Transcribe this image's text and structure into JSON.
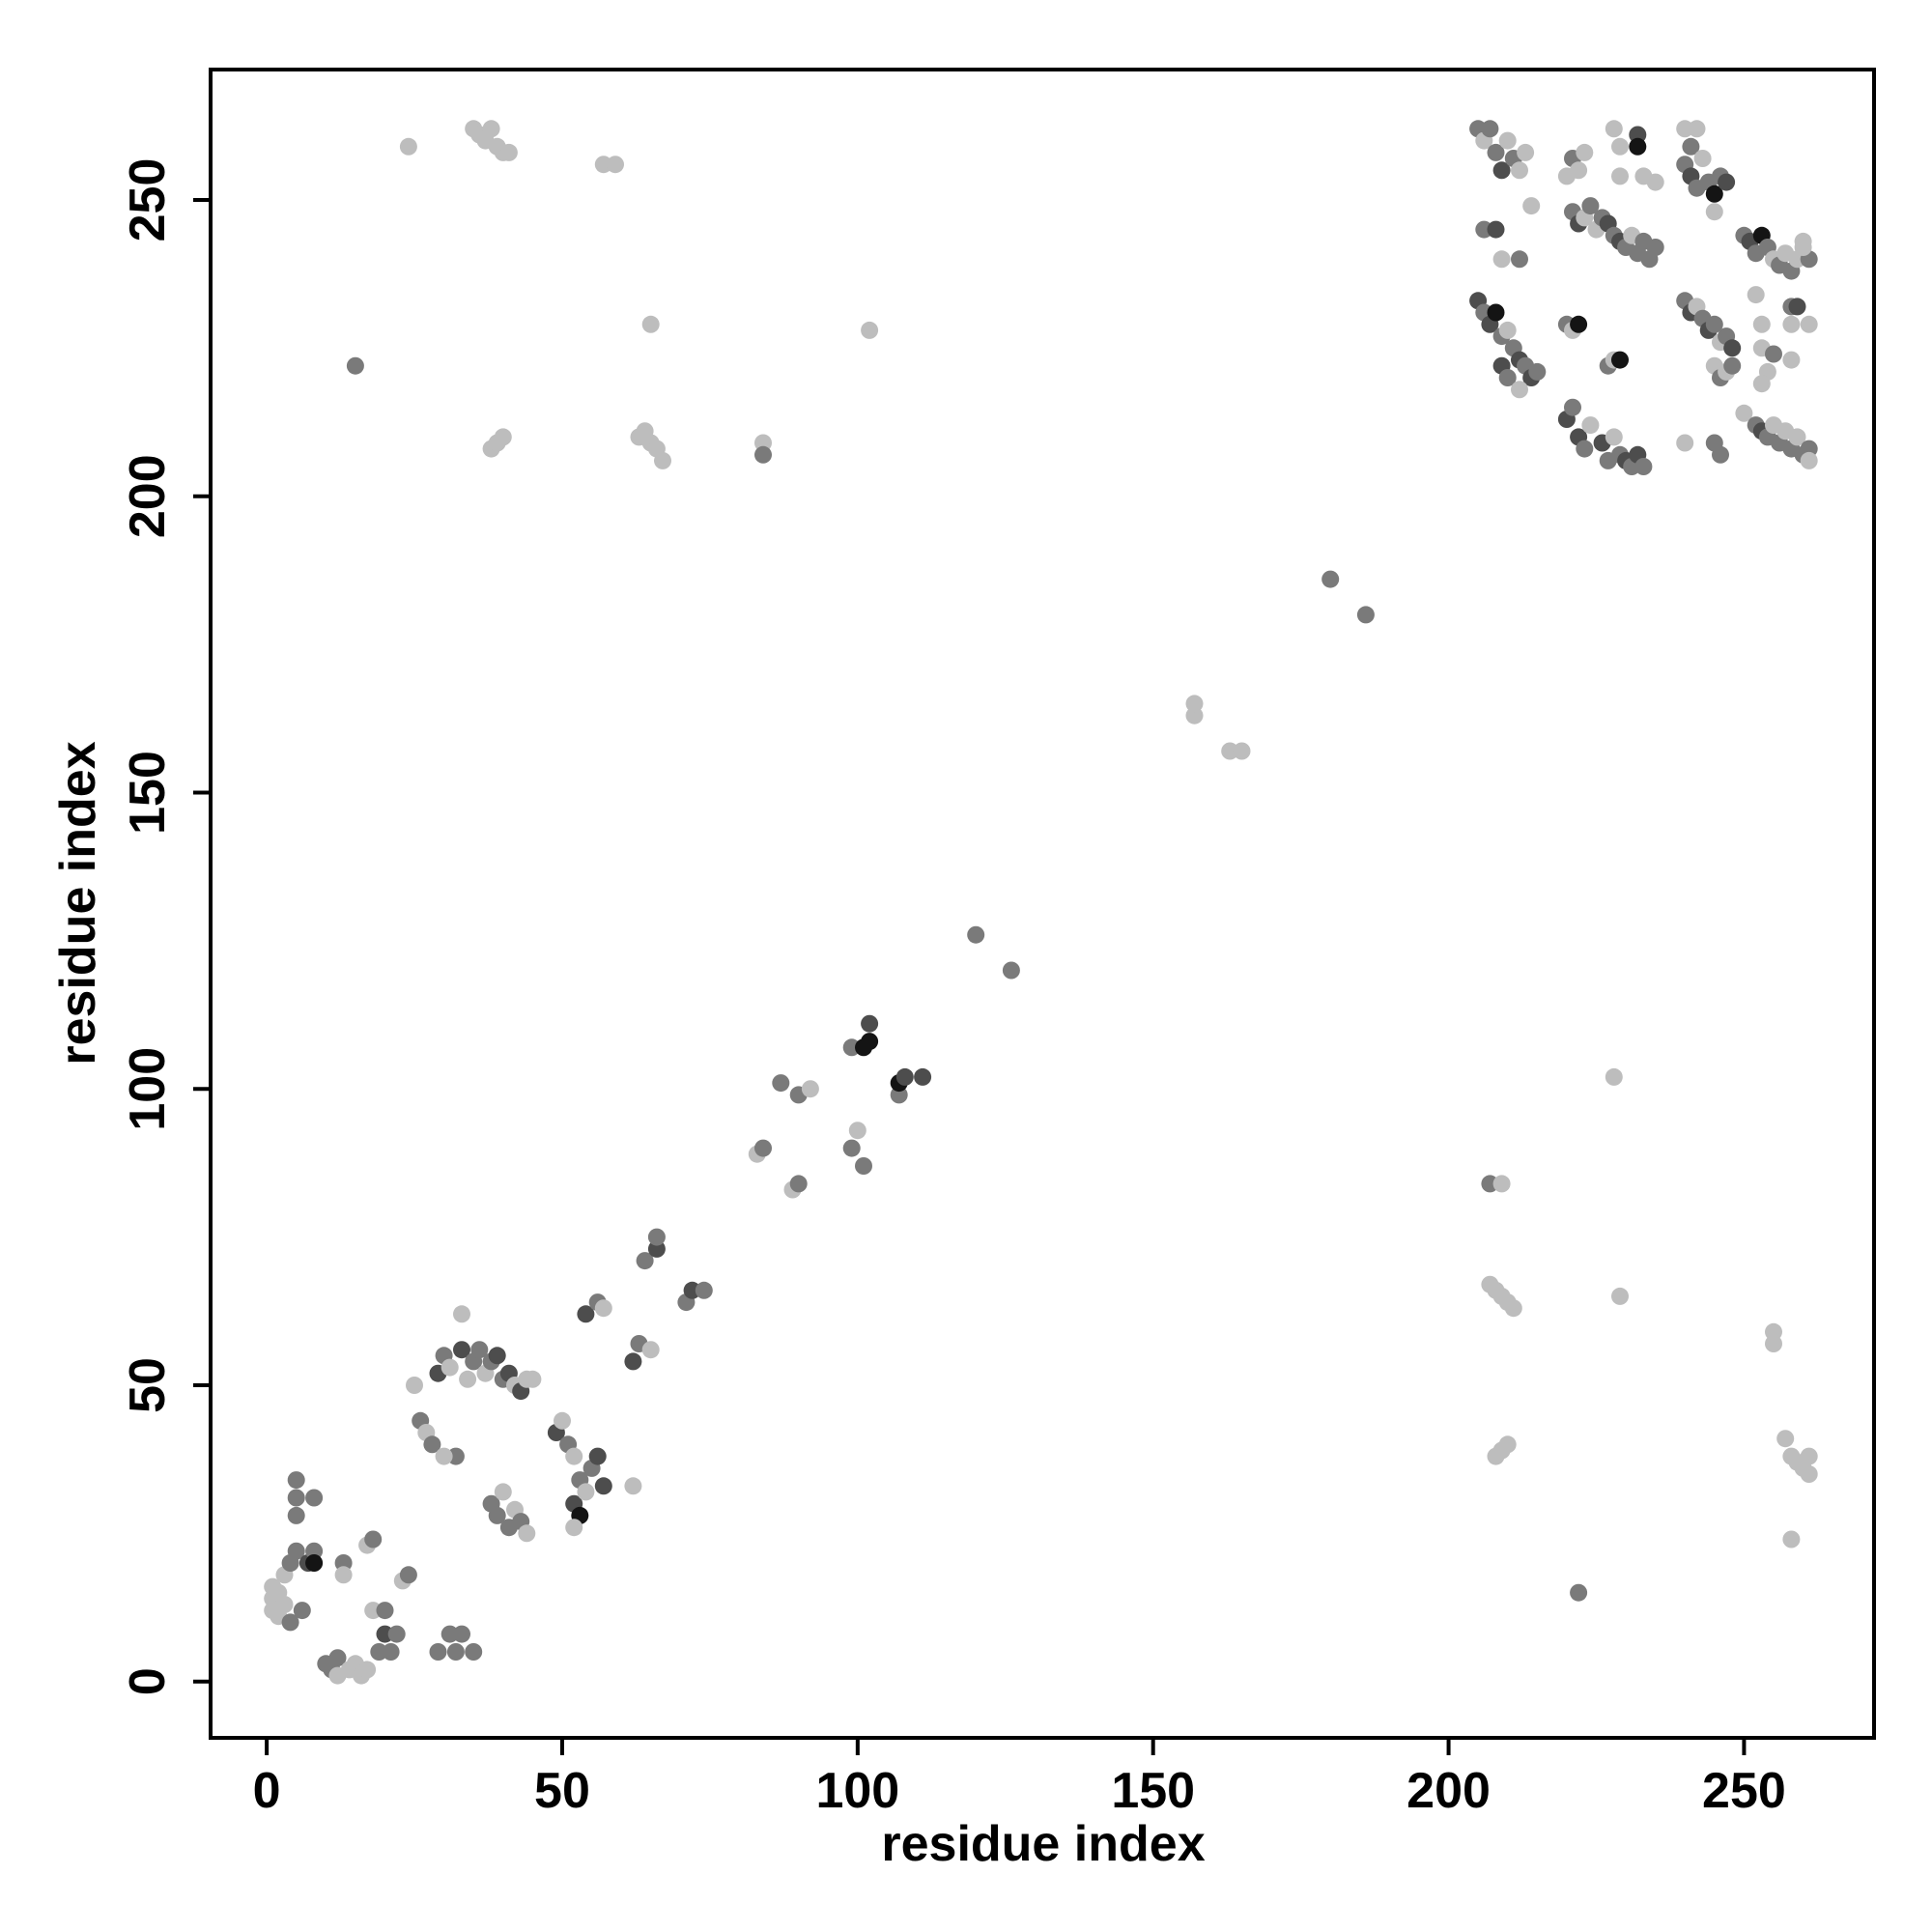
{
  "chart_data": {
    "type": "scatter",
    "xlabel": "residue index",
    "ylabel": "residue index",
    "xlim": [
      -9.5,
      272
    ],
    "ylim": [
      -9.5,
      272
    ],
    "x_ticks": [
      0,
      50,
      100,
      150,
      200,
      250
    ],
    "y_ticks": [
      0,
      50,
      100,
      150,
      200,
      250
    ],
    "grid": false,
    "point_color_scale": "grayscale (dark = strong, light = weak)",
    "colors": {
      "dark": "#141414",
      "darkgray": "#4d4d4d",
      "gray": "#7a7a7a",
      "lightgray": "#bdbdbd"
    },
    "points": [
      [
        1,
        16,
        "lightgray"
      ],
      [
        1,
        14,
        "lightgray"
      ],
      [
        1,
        12,
        "lightgray"
      ],
      [
        2,
        15,
        "lightgray"
      ],
      [
        2,
        11,
        "lightgray"
      ],
      [
        3,
        18,
        "lightgray"
      ],
      [
        3,
        13,
        "lightgray"
      ],
      [
        4,
        20,
        "gray"
      ],
      [
        4,
        10,
        "gray"
      ],
      [
        5,
        22,
        "gray"
      ],
      [
        5,
        34,
        "gray"
      ],
      [
        5,
        31,
        "gray"
      ],
      [
        5,
        28,
        "gray"
      ],
      [
        6,
        12,
        "gray"
      ],
      [
        7,
        20,
        "darkgray"
      ],
      [
        8,
        22,
        "gray"
      ],
      [
        8,
        20,
        "dark"
      ],
      [
        8,
        31,
        "gray"
      ],
      [
        10,
        3,
        "gray"
      ],
      [
        11,
        2,
        "gray"
      ],
      [
        12,
        4,
        "gray"
      ],
      [
        12,
        1,
        "lightgray"
      ],
      [
        13,
        20,
        "gray"
      ],
      [
        13,
        18,
        "lightgray"
      ],
      [
        14,
        2,
        "lightgray"
      ],
      [
        15,
        3,
        "lightgray"
      ],
      [
        16,
        1,
        "lightgray"
      ],
      [
        17,
        2,
        "lightgray"
      ],
      [
        17,
        23,
        "lightgray"
      ],
      [
        18,
        24,
        "gray"
      ],
      [
        18,
        12,
        "lightgray"
      ],
      [
        19,
        5,
        "gray"
      ],
      [
        20,
        8,
        "darkgray"
      ],
      [
        20,
        12,
        "gray"
      ],
      [
        21,
        5,
        "gray"
      ],
      [
        22,
        8,
        "gray"
      ],
      [
        23,
        17,
        "lightgray"
      ],
      [
        24,
        18,
        "gray"
      ],
      [
        29,
        5,
        "gray"
      ],
      [
        31,
        8,
        "gray"
      ],
      [
        32,
        5,
        "gray"
      ],
      [
        33,
        8,
        "gray"
      ],
      [
        35,
        5,
        "gray"
      ],
      [
        25,
        50,
        "lightgray"
      ],
      [
        26,
        44,
        "gray"
      ],
      [
        27,
        42,
        "lightgray"
      ],
      [
        28,
        40,
        "gray"
      ],
      [
        29,
        52,
        "darkgray"
      ],
      [
        30,
        55,
        "gray"
      ],
      [
        31,
        53,
        "lightgray"
      ],
      [
        32,
        38,
        "gray"
      ],
      [
        33,
        56,
        "darkgray"
      ],
      [
        34,
        51,
        "lightgray"
      ],
      [
        35,
        54,
        "gray"
      ],
      [
        36,
        56,
        "gray"
      ],
      [
        37,
        52,
        "lightgray"
      ],
      [
        38,
        54,
        "gray"
      ],
      [
        39,
        55,
        "darkgray"
      ],
      [
        40,
        51,
        "gray"
      ],
      [
        41,
        52,
        "darkgray"
      ],
      [
        42,
        50,
        "lightgray"
      ],
      [
        43,
        49,
        "darkgray"
      ],
      [
        44,
        51,
        "lightgray"
      ],
      [
        45,
        51,
        "lightgray"
      ],
      [
        33,
        62,
        "lightgray"
      ],
      [
        30,
        38,
        "lightgray"
      ],
      [
        38,
        30,
        "gray"
      ],
      [
        39,
        28,
        "gray"
      ],
      [
        40,
        32,
        "lightgray"
      ],
      [
        41,
        26,
        "gray"
      ],
      [
        42,
        29,
        "lightgray"
      ],
      [
        43,
        27,
        "gray"
      ],
      [
        44,
        25,
        "lightgray"
      ],
      [
        49,
        42,
        "darkgray"
      ],
      [
        50,
        44,
        "lightgray"
      ],
      [
        51,
        40,
        "gray"
      ],
      [
        52,
        38,
        "lightgray"
      ],
      [
        52,
        30,
        "darkgray"
      ],
      [
        53,
        34,
        "gray"
      ],
      [
        53,
        28,
        "dark"
      ],
      [
        54,
        32,
        "lightgray"
      ],
      [
        55,
        36,
        "gray"
      ],
      [
        56,
        38,
        "darkgray"
      ],
      [
        57,
        33,
        "darkgray"
      ],
      [
        52,
        26,
        "lightgray"
      ],
      [
        54,
        62,
        "darkgray"
      ],
      [
        56,
        64,
        "gray"
      ],
      [
        57,
        63,
        "lightgray"
      ],
      [
        62,
        33,
        "lightgray"
      ],
      [
        62,
        54,
        "darkgray"
      ],
      [
        63,
        57,
        "gray"
      ],
      [
        65,
        56,
        "lightgray"
      ],
      [
        64,
        71,
        "gray"
      ],
      [
        66,
        73,
        "darkgray"
      ],
      [
        66,
        75,
        "gray"
      ],
      [
        71,
        64,
        "gray"
      ],
      [
        72,
        66,
        "darkgray"
      ],
      [
        74,
        66,
        "gray"
      ],
      [
        83,
        89,
        "lightgray"
      ],
      [
        84,
        90,
        "gray"
      ],
      [
        87,
        101,
        "gray"
      ],
      [
        89,
        83,
        "lightgray"
      ],
      [
        90,
        84,
        "gray"
      ],
      [
        90,
        99,
        "gray"
      ],
      [
        92,
        100,
        "lightgray"
      ],
      [
        99,
        90,
        "gray"
      ],
      [
        99,
        107,
        "gray"
      ],
      [
        100,
        93,
        "lightgray"
      ],
      [
        101,
        87,
        "gray"
      ],
      [
        101,
        107,
        "dark"
      ],
      [
        102,
        108,
        "dark"
      ],
      [
        102,
        111,
        "darkgray"
      ],
      [
        107,
        99,
        "gray"
      ],
      [
        107,
        101,
        "dark"
      ],
      [
        108,
        102,
        "darkgray"
      ],
      [
        111,
        102,
        "darkgray"
      ],
      [
        120,
        126,
        "gray"
      ],
      [
        126,
        120,
        "gray"
      ],
      [
        157,
        163,
        "lightgray"
      ],
      [
        157,
        165,
        "lightgray"
      ],
      [
        163,
        157,
        "lightgray"
      ],
      [
        165,
        157,
        "lightgray"
      ],
      [
        180,
        186,
        "gray"
      ],
      [
        186,
        180,
        "gray"
      ],
      [
        15,
        222,
        "gray"
      ],
      [
        24,
        259,
        "lightgray"
      ],
      [
        35,
        262,
        "lightgray"
      ],
      [
        36,
        261,
        "lightgray"
      ],
      [
        37,
        260,
        "lightgray"
      ],
      [
        38,
        262,
        "lightgray"
      ],
      [
        39,
        259,
        "lightgray"
      ],
      [
        40,
        258,
        "lightgray"
      ],
      [
        41,
        258,
        "lightgray"
      ],
      [
        57,
        256,
        "lightgray"
      ],
      [
        59,
        256,
        "lightgray"
      ],
      [
        38,
        208,
        "lightgray"
      ],
      [
        39,
        209,
        "lightgray"
      ],
      [
        40,
        210,
        "lightgray"
      ],
      [
        63,
        210,
        "lightgray"
      ],
      [
        64,
        211,
        "lightgray"
      ],
      [
        65,
        209,
        "lightgray"
      ],
      [
        66,
        208,
        "lightgray"
      ],
      [
        67,
        206,
        "lightgray"
      ],
      [
        84,
        209,
        "lightgray"
      ],
      [
        84,
        207,
        "gray"
      ],
      [
        65,
        229,
        "lightgray"
      ],
      [
        102,
        228,
        "lightgray"
      ],
      [
        205,
        262,
        "gray"
      ],
      [
        206,
        260,
        "lightgray"
      ],
      [
        207,
        262,
        "gray"
      ],
      [
        208,
        258,
        "gray"
      ],
      [
        209,
        255,
        "darkgray"
      ],
      [
        210,
        260,
        "lightgray"
      ],
      [
        211,
        257,
        "gray"
      ],
      [
        212,
        255,
        "lightgray"
      ],
      [
        213,
        258,
        "lightgray"
      ],
      [
        214,
        249,
        "lightgray"
      ],
      [
        206,
        245,
        "gray"
      ],
      [
        208,
        245,
        "darkgray"
      ],
      [
        209,
        240,
        "lightgray"
      ],
      [
        212,
        240,
        "gray"
      ],
      [
        205,
        233,
        "darkgray"
      ],
      [
        206,
        231,
        "gray"
      ],
      [
        207,
        229,
        "darkgray"
      ],
      [
        208,
        231,
        "dark"
      ],
      [
        209,
        227,
        "gray"
      ],
      [
        210,
        228,
        "lightgray"
      ],
      [
        211,
        225,
        "gray"
      ],
      [
        209,
        222,
        "darkgray"
      ],
      [
        210,
        220,
        "gray"
      ],
      [
        212,
        223,
        "darkgray"
      ],
      [
        213,
        222,
        "gray"
      ],
      [
        214,
        220,
        "darkgray"
      ],
      [
        215,
        221,
        "gray"
      ],
      [
        212,
        218,
        "lightgray"
      ],
      [
        220,
        213,
        "darkgray"
      ],
      [
        221,
        215,
        "gray"
      ],
      [
        222,
        210,
        "darkgray"
      ],
      [
        223,
        208,
        "gray"
      ],
      [
        224,
        212,
        "lightgray"
      ],
      [
        220,
        229,
        "gray"
      ],
      [
        221,
        228,
        "lightgray"
      ],
      [
        222,
        229,
        "dark"
      ],
      [
        227,
        222,
        "gray"
      ],
      [
        228,
        223,
        "lightgray"
      ],
      [
        229,
        223,
        "dark"
      ],
      [
        226,
        209,
        "darkgray"
      ],
      [
        227,
        206,
        "gray"
      ],
      [
        228,
        210,
        "lightgray"
      ],
      [
        229,
        207,
        "gray"
      ],
      [
        230,
        206,
        "darkgray"
      ],
      [
        231,
        205,
        "gray"
      ],
      [
        232,
        207,
        "darkgray"
      ],
      [
        233,
        205,
        "gray"
      ],
      [
        220,
        254,
        "lightgray"
      ],
      [
        221,
        257,
        "gray"
      ],
      [
        222,
        255,
        "lightgray"
      ],
      [
        223,
        258,
        "lightgray"
      ],
      [
        221,
        248,
        "gray"
      ],
      [
        222,
        246,
        "darkgray"
      ],
      [
        223,
        247,
        "lightgray"
      ],
      [
        224,
        249,
        "gray"
      ],
      [
        225,
        245,
        "lightgray"
      ],
      [
        226,
        247,
        "gray"
      ],
      [
        227,
        246,
        "darkgray"
      ],
      [
        228,
        244,
        "gray"
      ],
      [
        229,
        243,
        "darkgray"
      ],
      [
        230,
        242,
        "gray"
      ],
      [
        231,
        244,
        "lightgray"
      ],
      [
        232,
        241,
        "gray"
      ],
      [
        233,
        243,
        "gray"
      ],
      [
        234,
        240,
        "gray"
      ],
      [
        235,
        242,
        "gray"
      ],
      [
        228,
        262,
        "lightgray"
      ],
      [
        229,
        259,
        "lightgray"
      ],
      [
        229,
        254,
        "lightgray"
      ],
      [
        232,
        261,
        "darkgray"
      ],
      [
        232,
        259,
        "dark"
      ],
      [
        233,
        254,
        "lightgray"
      ],
      [
        235,
        253,
        "lightgray"
      ],
      [
        240,
        262,
        "lightgray"
      ],
      [
        241,
        259,
        "gray"
      ],
      [
        242,
        262,
        "lightgray"
      ],
      [
        240,
        256,
        "gray"
      ],
      [
        241,
        254,
        "darkgray"
      ],
      [
        242,
        252,
        "gray"
      ],
      [
        243,
        257,
        "lightgray"
      ],
      [
        244,
        253,
        "gray"
      ],
      [
        245,
        251,
        "dark"
      ],
      [
        246,
        254,
        "gray"
      ],
      [
        247,
        253,
        "darkgray"
      ],
      [
        245,
        248,
        "lightgray"
      ],
      [
        240,
        233,
        "gray"
      ],
      [
        241,
        231,
        "darkgray"
      ],
      [
        242,
        232,
        "lightgray"
      ],
      [
        243,
        230,
        "gray"
      ],
      [
        244,
        228,
        "darkgray"
      ],
      [
        245,
        229,
        "gray"
      ],
      [
        246,
        226,
        "lightgray"
      ],
      [
        247,
        227,
        "gray"
      ],
      [
        248,
        225,
        "darkgray"
      ],
      [
        245,
        222,
        "lightgray"
      ],
      [
        246,
        220,
        "gray"
      ],
      [
        247,
        221,
        "lightgray"
      ],
      [
        248,
        222,
        "gray"
      ],
      [
        240,
        209,
        "lightgray"
      ],
      [
        245,
        209,
        "gray"
      ],
      [
        246,
        207,
        "gray"
      ],
      [
        250,
        244,
        "gray"
      ],
      [
        251,
        243,
        "darkgray"
      ],
      [
        252,
        241,
        "gray"
      ],
      [
        253,
        244,
        "dark"
      ],
      [
        254,
        242,
        "gray"
      ],
      [
        255,
        240,
        "lightgray"
      ],
      [
        256,
        239,
        "gray"
      ],
      [
        257,
        241,
        "lightgray"
      ],
      [
        258,
        238,
        "gray"
      ],
      [
        259,
        240,
        "lightgray"
      ],
      [
        260,
        243,
        "lightgray"
      ],
      [
        261,
        240,
        "gray"
      ],
      [
        252,
        234,
        "lightgray"
      ],
      [
        253,
        229,
        "lightgray"
      ],
      [
        253,
        225,
        "lightgray"
      ],
      [
        254,
        221,
        "lightgray"
      ],
      [
        253,
        219,
        "lightgray"
      ],
      [
        255,
        224,
        "gray"
      ],
      [
        258,
        232,
        "gray"
      ],
      [
        258,
        229,
        "lightgray"
      ],
      [
        259,
        232,
        "darkgray"
      ],
      [
        261,
        229,
        "lightgray"
      ],
      [
        250,
        214,
        "lightgray"
      ],
      [
        252,
        212,
        "gray"
      ],
      [
        253,
        211,
        "darkgray"
      ],
      [
        254,
        210,
        "gray"
      ],
      [
        255,
        212,
        "lightgray"
      ],
      [
        256,
        209,
        "gray"
      ],
      [
        257,
        211,
        "lightgray"
      ],
      [
        258,
        208,
        "gray"
      ],
      [
        259,
        210,
        "lightgray"
      ],
      [
        260,
        207,
        "gray"
      ],
      [
        261,
        208,
        "gray"
      ],
      [
        261,
        206,
        "lightgray"
      ],
      [
        258,
        223,
        "lightgray"
      ],
      [
        260,
        242,
        "lightgray"
      ],
      [
        207,
        84,
        "gray"
      ],
      [
        209,
        84,
        "lightgray"
      ],
      [
        207,
        67,
        "lightgray"
      ],
      [
        208,
        66,
        "lightgray"
      ],
      [
        209,
        65,
        "lightgray"
      ],
      [
        210,
        64,
        "lightgray"
      ],
      [
        211,
        63,
        "lightgray"
      ],
      [
        228,
        102,
        "lightgray"
      ],
      [
        229,
        65,
        "lightgray"
      ],
      [
        208,
        38,
        "lightgray"
      ],
      [
        209,
        39,
        "lightgray"
      ],
      [
        210,
        40,
        "lightgray"
      ],
      [
        222,
        15,
        "gray"
      ],
      [
        255,
        59,
        "lightgray"
      ],
      [
        255,
        57,
        "lightgray"
      ],
      [
        257,
        41,
        "lightgray"
      ],
      [
        258,
        38,
        "lightgray"
      ],
      [
        259,
        37,
        "lightgray"
      ],
      [
        260,
        36,
        "lightgray"
      ],
      [
        261,
        35,
        "lightgray"
      ],
      [
        261,
        38,
        "lightgray"
      ],
      [
        258,
        24,
        "lightgray"
      ]
    ]
  }
}
